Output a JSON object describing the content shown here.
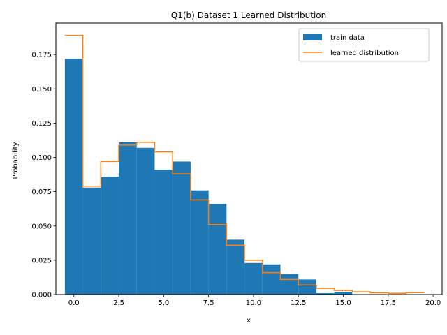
{
  "chart_data": {
    "type": "bar",
    "title": "Q1(b) Dataset 1 Learned Distribution",
    "xlabel": "x",
    "ylabel": "Probability",
    "xlim": [
      -1.0,
      20.5
    ],
    "ylim": [
      0,
      0.198
    ],
    "xticks": [
      0.0,
      2.5,
      5.0,
      7.5,
      10.0,
      12.5,
      15.0,
      17.5,
      20.0
    ],
    "xtick_labels": [
      "0.0",
      "2.5",
      "5.0",
      "7.5",
      "10.0",
      "12.5",
      "15.0",
      "17.5",
      "20.0"
    ],
    "yticks": [
      0.0,
      0.025,
      0.05,
      0.075,
      0.1,
      0.125,
      0.15,
      0.175
    ],
    "ytick_labels": [
      "0.000",
      "0.025",
      "0.050",
      "0.075",
      "0.100",
      "0.125",
      "0.150",
      "0.175"
    ],
    "legend_position": "top-right",
    "series": [
      {
        "name": "train data",
        "kind": "bar",
        "color": "#1f77b4",
        "x": [
          0,
          1,
          2,
          3,
          4,
          5,
          6,
          7,
          8,
          9,
          10,
          11,
          12,
          13,
          14,
          15
        ],
        "values": [
          0.172,
          0.078,
          0.086,
          0.111,
          0.107,
          0.091,
          0.097,
          0.076,
          0.066,
          0.04,
          0.023,
          0.022,
          0.015,
          0.011,
          0.001,
          0.002
        ]
      },
      {
        "name": "learned distribution",
        "kind": "step",
        "color": "#ff7f0e",
        "x": [
          0,
          1,
          2,
          3,
          4,
          5,
          6,
          7,
          8,
          9,
          10,
          11,
          12,
          13,
          14,
          15,
          16,
          17,
          18,
          19
        ],
        "values": [
          0.189,
          0.079,
          0.097,
          0.109,
          0.111,
          0.104,
          0.088,
          0.069,
          0.051,
          0.036,
          0.025,
          0.016,
          0.011,
          0.007,
          0.0045,
          0.003,
          0.002,
          0.0013,
          0.0009,
          0.0014
        ]
      }
    ]
  }
}
